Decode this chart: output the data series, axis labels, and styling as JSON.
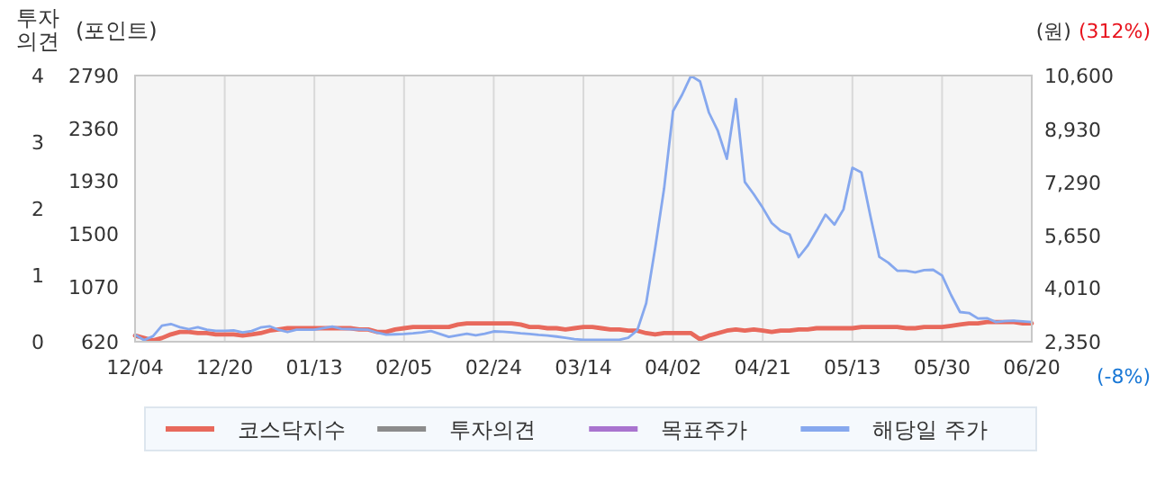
{
  "chart_data": {
    "type": "line",
    "ylabel": "(포인트)",
    "y2label": "(원)",
    "y3label": "투자의견",
    "categories": [
      "12/04",
      null,
      null,
      null,
      null,
      null,
      null,
      null,
      null,
      null,
      "12/20",
      null,
      null,
      null,
      null,
      null,
      null,
      null,
      null,
      null,
      "01/13",
      null,
      null,
      null,
      null,
      null,
      null,
      null,
      null,
      null,
      "02/05",
      null,
      null,
      null,
      null,
      null,
      null,
      null,
      null,
      null,
      "02/24",
      null,
      null,
      null,
      null,
      null,
      null,
      null,
      null,
      null,
      "03/14",
      null,
      null,
      null,
      null,
      null,
      null,
      null,
      null,
      null,
      "04/02",
      null,
      null,
      null,
      null,
      null,
      null,
      null,
      null,
      null,
      "04/21",
      null,
      null,
      null,
      null,
      null,
      null,
      null,
      null,
      null,
      "05/13",
      null,
      null,
      null,
      null,
      null,
      null,
      null,
      null,
      null,
      "05/30",
      null,
      null,
      null,
      null,
      null,
      null,
      null,
      null,
      null,
      "06/20"
    ],
    "ylim": [
      620,
      2790
    ],
    "yticks": [
      620,
      1070,
      1500,
      1930,
      2360,
      2790
    ],
    "y2lim": [
      2350,
      10600
    ],
    "y2ticks": [
      {
        "value": 2350,
        "label": "2,350"
      },
      {
        "value": 4010,
        "label": "4,010"
      },
      {
        "value": 5650,
        "label": "5,650"
      },
      {
        "value": 7290,
        "label": "7,290"
      },
      {
        "value": 8930,
        "label": "8,930"
      },
      {
        "value": 10600,
        "label": "10,600"
      }
    ],
    "y3lim": [
      0,
      4
    ],
    "y3ticks": [
      0,
      1,
      2,
      3,
      4
    ],
    "annotations": [
      "(312%)",
      "(-8%)"
    ],
    "grid": "x",
    "legend": "bottom",
    "series": [
      {
        "name": "코스닥지수",
        "color": "#e8695c",
        "values": [
          670,
          650,
          630,
          650,
          680,
          700,
          700,
          690,
          690,
          680,
          680,
          680,
          670,
          680,
          690,
          710,
          720,
          730,
          730,
          730,
          730,
          730,
          730,
          730,
          730,
          720,
          720,
          700,
          700,
          720,
          730,
          740,
          740,
          740,
          740,
          740,
          760,
          770,
          770,
          770,
          770,
          770,
          770,
          760,
          740,
          740,
          730,
          730,
          720,
          730,
          740,
          740,
          730,
          720,
          720,
          710,
          710,
          690,
          680,
          690,
          690,
          690,
          690,
          640,
          670,
          690,
          710,
          720,
          710,
          720,
          710,
          700,
          710,
          710,
          720,
          720,
          730,
          730,
          730,
          730,
          730,
          740,
          740,
          740,
          740,
          740,
          730,
          730,
          740,
          740,
          740,
          750,
          760,
          770,
          770,
          780,
          780,
          780,
          780,
          770,
          770
        ]
      },
      {
        "name": "투자의견",
        "color": "#8c8c8c",
        "axis": "y3",
        "values": [
          null,
          null,
          null,
          null,
          null,
          null,
          null,
          null,
          null,
          null,
          null,
          null,
          null,
          null,
          null,
          null,
          null,
          null,
          null,
          null,
          null,
          null,
          null,
          null,
          null,
          null,
          null,
          null,
          null,
          null,
          null,
          null,
          null,
          null,
          null,
          null,
          null,
          null,
          null,
          null,
          null,
          null,
          null,
          null,
          null,
          null,
          null,
          null,
          null,
          null,
          null,
          null,
          null,
          null,
          null,
          null,
          null,
          null,
          null,
          null,
          null,
          null,
          null,
          null,
          null,
          null,
          null,
          null,
          null,
          null,
          null,
          null,
          null,
          null,
          null,
          null,
          null,
          null,
          null,
          null,
          null,
          null,
          null,
          null,
          null,
          null,
          null,
          null,
          null,
          null,
          null,
          null,
          null,
          null,
          null,
          null,
          null,
          null,
          null,
          null,
          null
        ]
      },
      {
        "name": "목표주가",
        "color": "#a974cf",
        "axis": "y2",
        "values": [
          null,
          null,
          null,
          null,
          null,
          null,
          null,
          null,
          null,
          null,
          null,
          null,
          null,
          null,
          null,
          null,
          null,
          null,
          null,
          null,
          null,
          null,
          null,
          null,
          null,
          null,
          null,
          null,
          null,
          null,
          null,
          null,
          null,
          null,
          null,
          null,
          null,
          null,
          null,
          null,
          null,
          null,
          null,
          null,
          null,
          null,
          null,
          null,
          null,
          null,
          null,
          null,
          null,
          null,
          null,
          null,
          null,
          null,
          null,
          null,
          null,
          null,
          null,
          null,
          null,
          null,
          null,
          null,
          null,
          null,
          null,
          null,
          null,
          null,
          null,
          null,
          null,
          null,
          null,
          null,
          null,
          null,
          null,
          null,
          null,
          null,
          null,
          null,
          null,
          null,
          null,
          null,
          null,
          null,
          null,
          null,
          null,
          null,
          null,
          null,
          null
        ]
      },
      {
        "name": "해당일 주가",
        "color": "#86a8ee",
        "axis": "y2",
        "values": [
          2570,
          2400,
          2520,
          2850,
          2900,
          2800,
          2740,
          2800,
          2720,
          2690,
          2690,
          2700,
          2640,
          2680,
          2790,
          2830,
          2720,
          2650,
          2720,
          2720,
          2720,
          2770,
          2820,
          2750,
          2740,
          2730,
          2720,
          2630,
          2570,
          2580,
          2590,
          2610,
          2640,
          2680,
          2590,
          2500,
          2550,
          2600,
          2550,
          2600,
          2670,
          2660,
          2640,
          2610,
          2590,
          2560,
          2540,
          2510,
          2470,
          2430,
          2410,
          2410,
          2410,
          2410,
          2410,
          2470,
          2700,
          3540,
          5250,
          7100,
          9500,
          10000,
          10590,
          10420,
          9450,
          8880,
          8020,
          9870,
          7300,
          6920,
          6500,
          6030,
          5790,
          5670,
          4970,
          5320,
          5790,
          6290,
          5980,
          6450,
          7740,
          7600,
          6250,
          4980,
          4800,
          4550,
          4550,
          4500,
          4570,
          4580,
          4400,
          3800,
          3270,
          3240,
          3070,
          3080,
          2960,
          2990,
          3000,
          2980,
          2960
        ]
      }
    ]
  }
}
